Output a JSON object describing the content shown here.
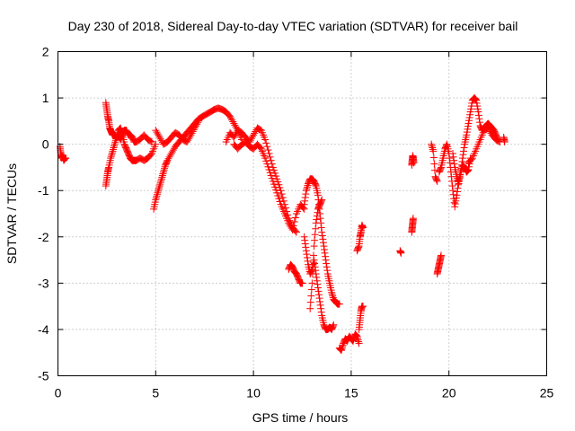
{
  "chart_data": {
    "type": "scatter",
    "title": "Day 230 of 2018, Sidereal Day-to-day VTEC variation (SDTVAR) for receiver bail",
    "xlabel": "GPS time / hours",
    "ylabel": "SDTVAR / TECUs",
    "xlim": [
      0,
      25
    ],
    "ylim": [
      -5,
      2
    ],
    "xticks": [
      0,
      5,
      10,
      15,
      20,
      25
    ],
    "yticks": [
      -5,
      -4,
      -3,
      -2,
      -1,
      0,
      1,
      2
    ],
    "grid": true,
    "marker": "+",
    "series": [
      {
        "name": "SDTVAR",
        "color": "#ff0000",
        "segments": [
          {
            "x": [
              0.1,
              0.15,
              0.2,
              0.25,
              0.3,
              0.35,
              0.4
            ],
            "y": [
              -0.05,
              -0.2,
              -0.3,
              -0.25,
              -0.35,
              -0.3,
              -0.3
            ]
          },
          {
            "x": [
              2.45,
              2.5,
              2.55,
              2.6,
              2.65,
              2.7,
              2.75,
              2.8,
              2.9,
              3.0,
              3.1,
              3.2,
              3.3,
              3.4,
              3.5,
              3.6,
              3.7,
              3.8,
              3.9,
              4.0,
              4.2,
              4.4,
              4.6,
              4.8
            ],
            "y": [
              0.9,
              0.75,
              0.6,
              0.5,
              0.35,
              0.3,
              0.25,
              0.2,
              0.2,
              0.15,
              0.2,
              0.1,
              0.2,
              0.3,
              0.3,
              0.2,
              0.2,
              0.15,
              0.05,
              0.05,
              0.1,
              0.2,
              0.1,
              0.05
            ]
          },
          {
            "x": [
              2.45,
              2.5,
              2.55,
              2.6,
              2.7,
              2.8,
              2.9,
              3.0,
              3.1,
              3.2,
              3.3,
              3.4,
              3.5,
              3.6,
              3.7,
              3.8,
              3.9,
              4.0,
              4.2,
              4.4,
              4.6,
              4.8,
              5.0
            ],
            "y": [
              -0.9,
              -0.75,
              -0.6,
              -0.5,
              -0.3,
              -0.15,
              0.0,
              0.15,
              0.3,
              0.35,
              0.2,
              0.0,
              -0.1,
              -0.2,
              -0.3,
              -0.35,
              -0.35,
              -0.35,
              -0.3,
              -0.35,
              -0.3,
              -0.2,
              0.0
            ]
          },
          {
            "x": [
              4.9,
              5.0,
              5.1,
              5.2,
              5.3,
              5.4,
              5.5,
              5.6,
              5.8,
              6.0,
              6.2,
              6.4,
              6.6,
              6.8,
              7.0,
              7.2,
              7.4,
              7.6,
              7.8,
              8.0,
              8.2,
              8.4,
              8.6,
              8.8,
              9.0,
              9.2,
              9.4
            ],
            "y": [
              -1.4,
              -1.2,
              -1.05,
              -0.9,
              -0.75,
              -0.6,
              -0.45,
              -0.35,
              -0.2,
              -0.05,
              0.05,
              0.15,
              0.25,
              0.35,
              0.45,
              0.55,
              0.6,
              0.65,
              0.7,
              0.75,
              0.78,
              0.75,
              0.7,
              0.6,
              0.45,
              0.3,
              0.1
            ]
          },
          {
            "x": [
              5.0,
              5.2,
              5.4,
              5.6,
              5.8,
              6.0,
              6.2,
              6.4,
              6.6,
              6.8,
              7.0,
              7.2
            ],
            "y": [
              0.3,
              0.15,
              0.0,
              0.05,
              0.15,
              0.25,
              0.2,
              0.1,
              0.05,
              0.2,
              0.35,
              0.5
            ]
          },
          {
            "x": [
              8.6,
              8.8,
              9.0,
              9.2,
              9.4,
              9.6,
              9.8,
              10.0,
              10.2,
              10.4,
              10.6,
              10.8,
              11.0,
              11.2,
              11.4,
              11.6,
              11.8,
              12.0,
              12.2
            ],
            "y": [
              0.05,
              0.25,
              0.15,
              0.3,
              0.25,
              0.15,
              0.05,
              0.2,
              0.35,
              0.3,
              0.1,
              -0.2,
              -0.5,
              -0.75,
              -1.0,
              -1.3,
              -1.6,
              -1.8,
              -1.9
            ]
          },
          {
            "x": [
              9.0,
              9.2,
              9.4,
              9.6,
              9.8,
              10.0,
              10.2,
              10.4,
              10.6,
              10.8,
              11.0,
              11.2,
              11.4,
              11.6,
              11.8,
              12.0,
              12.2,
              12.4,
              12.6
            ],
            "y": [
              0.0,
              -0.1,
              0.0,
              0.05,
              -0.05,
              -0.1,
              0.0,
              -0.1,
              -0.3,
              -0.55,
              -0.8,
              -1.05,
              -1.3,
              -1.5,
              -1.7,
              -1.85,
              -1.5,
              -1.3,
              -1.4
            ]
          },
          {
            "x": [
              11.8,
              11.9,
              12.0,
              12.1,
              12.2,
              12.3,
              12.4,
              12.5
            ],
            "y": [
              -2.7,
              -2.6,
              -2.65,
              -2.75,
              -2.8,
              -2.9,
              -3.0,
              -3.0
            ]
          },
          {
            "x": [
              12.6,
              12.7,
              12.8,
              12.9,
              13.0,
              13.1,
              13.2,
              13.3,
              13.4,
              13.5,
              13.6,
              13.7,
              13.8,
              13.9,
              14.0,
              14.1,
              14.2,
              14.3,
              14.4
            ],
            "y": [
              -1.3,
              -1.0,
              -0.85,
              -0.75,
              -0.75,
              -0.8,
              -0.9,
              -1.1,
              -1.5,
              -1.9,
              -2.2,
              -2.5,
              -2.8,
              -3.0,
              -3.2,
              -3.35,
              -3.4,
              -3.45,
              -3.45
            ]
          },
          {
            "x": [
              12.6,
              12.7,
              12.8,
              12.9,
              13.0,
              13.1,
              13.2,
              13.3,
              13.4,
              13.5,
              13.6,
              13.7,
              13.8,
              13.9,
              14.0,
              14.1
            ],
            "y": [
              -2.0,
              -2.3,
              -2.6,
              -2.8,
              -2.7,
              -2.5,
              -2.8,
              -3.1,
              -3.4,
              -3.7,
              -3.9,
              -4.0,
              -4.0,
              -3.95,
              -4.0,
              -3.9
            ]
          },
          {
            "x": [
              12.9,
              13.0,
              13.1,
              13.2,
              13.3,
              13.4,
              13.5
            ],
            "y": [
              -3.55,
              -3.0,
              -2.2,
              -1.7,
              -1.4,
              -1.3,
              -1.2
            ]
          },
          {
            "x": [
              14.4,
              14.5,
              14.6,
              14.7,
              14.8,
              14.9,
              15.0,
              15.1,
              15.2,
              15.3,
              15.4
            ],
            "y": [
              -4.4,
              -4.45,
              -4.3,
              -4.2,
              -4.25,
              -4.15,
              -4.2,
              -4.25,
              -4.1,
              -4.15,
              -4.3
            ]
          },
          {
            "x": [
              15.3,
              15.4,
              15.45,
              15.5,
              15.55,
              15.6
            ],
            "y": [
              -2.3,
              -2.2,
              -2.0,
              -1.9,
              -1.75,
              -1.8
            ]
          },
          {
            "x": [
              15.4,
              15.45,
              15.5,
              15.55,
              15.6
            ],
            "y": [
              -4.0,
              -3.8,
              -3.6,
              -3.5,
              -3.5
            ]
          },
          {
            "x": [
              17.5,
              17.55
            ],
            "y": [
              -2.3,
              -2.35
            ]
          },
          {
            "x": [
              18.1,
              18.12,
              18.15,
              18.17,
              18.2
            ],
            "y": [
              -0.45,
              -0.35,
              -0.25,
              -0.3,
              -0.4
            ]
          },
          {
            "x": [
              18.1,
              18.12,
              18.15,
              18.17
            ],
            "y": [
              -1.9,
              -1.8,
              -1.7,
              -1.6
            ]
          },
          {
            "x": [
              19.1,
              19.2,
              19.3,
              19.4
            ],
            "y": [
              0.0,
              -0.15,
              -0.7,
              -0.8
            ]
          },
          {
            "x": [
              19.4,
              19.45,
              19.5,
              19.55,
              19.6
            ],
            "y": [
              -2.8,
              -2.7,
              -2.6,
              -2.5,
              -2.4
            ]
          },
          {
            "x": [
              19.5,
              19.6,
              19.7,
              19.8,
              19.9,
              20.0,
              20.1,
              20.2,
              20.3,
              20.4,
              20.5,
              20.6,
              20.7,
              20.8,
              20.9,
              21.0,
              21.1
            ],
            "y": [
              -0.6,
              -0.5,
              -0.3,
              -0.1,
              0.0,
              -0.2,
              -0.6,
              -1.0,
              -1.35,
              -1.1,
              -0.8,
              -0.6,
              -0.45,
              -0.5,
              -0.6,
              -0.55,
              -0.3
            ]
          },
          {
            "x": [
              20.2,
              20.3,
              20.4,
              20.5,
              20.6,
              20.7,
              20.8,
              20.9,
              21.0,
              21.1,
              21.2,
              21.3,
              21.4,
              21.5,
              21.6,
              21.7,
              21.8,
              21.9,
              22.0,
              22.1,
              22.2,
              22.3,
              22.4,
              22.5
            ],
            "y": [
              -0.2,
              -0.5,
              -0.7,
              -0.85,
              -0.6,
              -0.3,
              0.0,
              0.2,
              0.45,
              0.7,
              0.95,
              1.0,
              0.95,
              0.7,
              0.4,
              0.3,
              0.35,
              0.4,
              0.45,
              0.4,
              0.35,
              0.3,
              0.2,
              0.1
            ]
          },
          {
            "x": [
              21.0,
              21.2,
              21.4,
              21.6,
              21.8,
              22.0,
              22.2,
              22.4,
              22.6
            ],
            "y": [
              -0.4,
              -0.3,
              -0.1,
              0.1,
              0.3,
              0.35,
              0.2,
              0.1,
              0.05
            ]
          },
          {
            "x": [
              22.8,
              22.85
            ],
            "y": [
              0.15,
              0.05
            ]
          }
        ]
      }
    ]
  }
}
